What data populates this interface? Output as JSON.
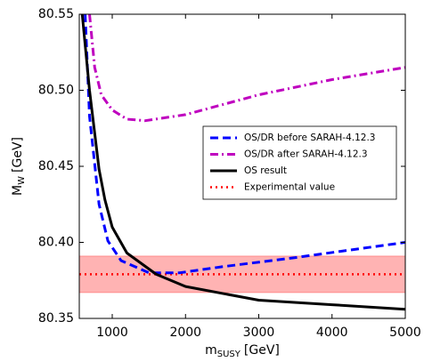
{
  "chart_data": {
    "type": "line",
    "xlabel": {
      "main": "m",
      "sub": "SUSY",
      "unit": "[GeV]"
    },
    "ylabel": {
      "main": "M",
      "sub": "W",
      "unit": "[GeV]"
    },
    "xlim": [
      550,
      5000
    ],
    "ylim": [
      80.35,
      80.55
    ],
    "xticks": [
      1000,
      2000,
      3000,
      4000,
      5000
    ],
    "yticks": [
      80.35,
      {
        "value": 80.4,
        "label": "80.40"
      },
      80.45,
      {
        "value": 80.5,
        "label": "80.50"
      },
      80.55
    ],
    "legend": "center right",
    "series": [
      {
        "name": "OS/DR before SARAH-4.12.3",
        "color": "#0000ff",
        "style": "dashed",
        "x": [
          630,
          690,
          820,
          940,
          1120,
          1500,
          1920,
          2500,
          3500,
          5000
        ],
        "values": [
          80.55,
          80.483,
          80.425,
          80.401,
          80.388,
          80.38,
          80.38,
          80.384,
          80.39,
          80.4
        ]
      },
      {
        "name": "OS/DR after SARAH-4.12.3",
        "color": "#bf00bf",
        "style": "dashdot",
        "x": [
          690,
          760,
          850,
          1000,
          1200,
          1450,
          2000,
          3000,
          4000,
          5000
        ],
        "values": [
          80.55,
          80.515,
          80.497,
          80.487,
          80.481,
          80.48,
          80.484,
          80.497,
          80.507,
          80.515
        ]
      },
      {
        "name": "OS result",
        "color": "#000000",
        "style": "solid",
        "x": [
          590,
          690,
          820,
          900,
          1000,
          1200,
          1600,
          2000,
          3000,
          4000,
          5000
        ],
        "values": [
          80.55,
          80.5,
          80.448,
          80.428,
          80.41,
          80.393,
          80.379,
          80.371,
          80.362,
          80.359,
          80.356
        ]
      },
      {
        "name": "Experimental value",
        "color": "#ff0000",
        "style": "dotted",
        "type": "hline",
        "value": 80.379,
        "band": [
          80.367,
          80.391
        ],
        "band_color": "#ff9999"
      }
    ]
  }
}
